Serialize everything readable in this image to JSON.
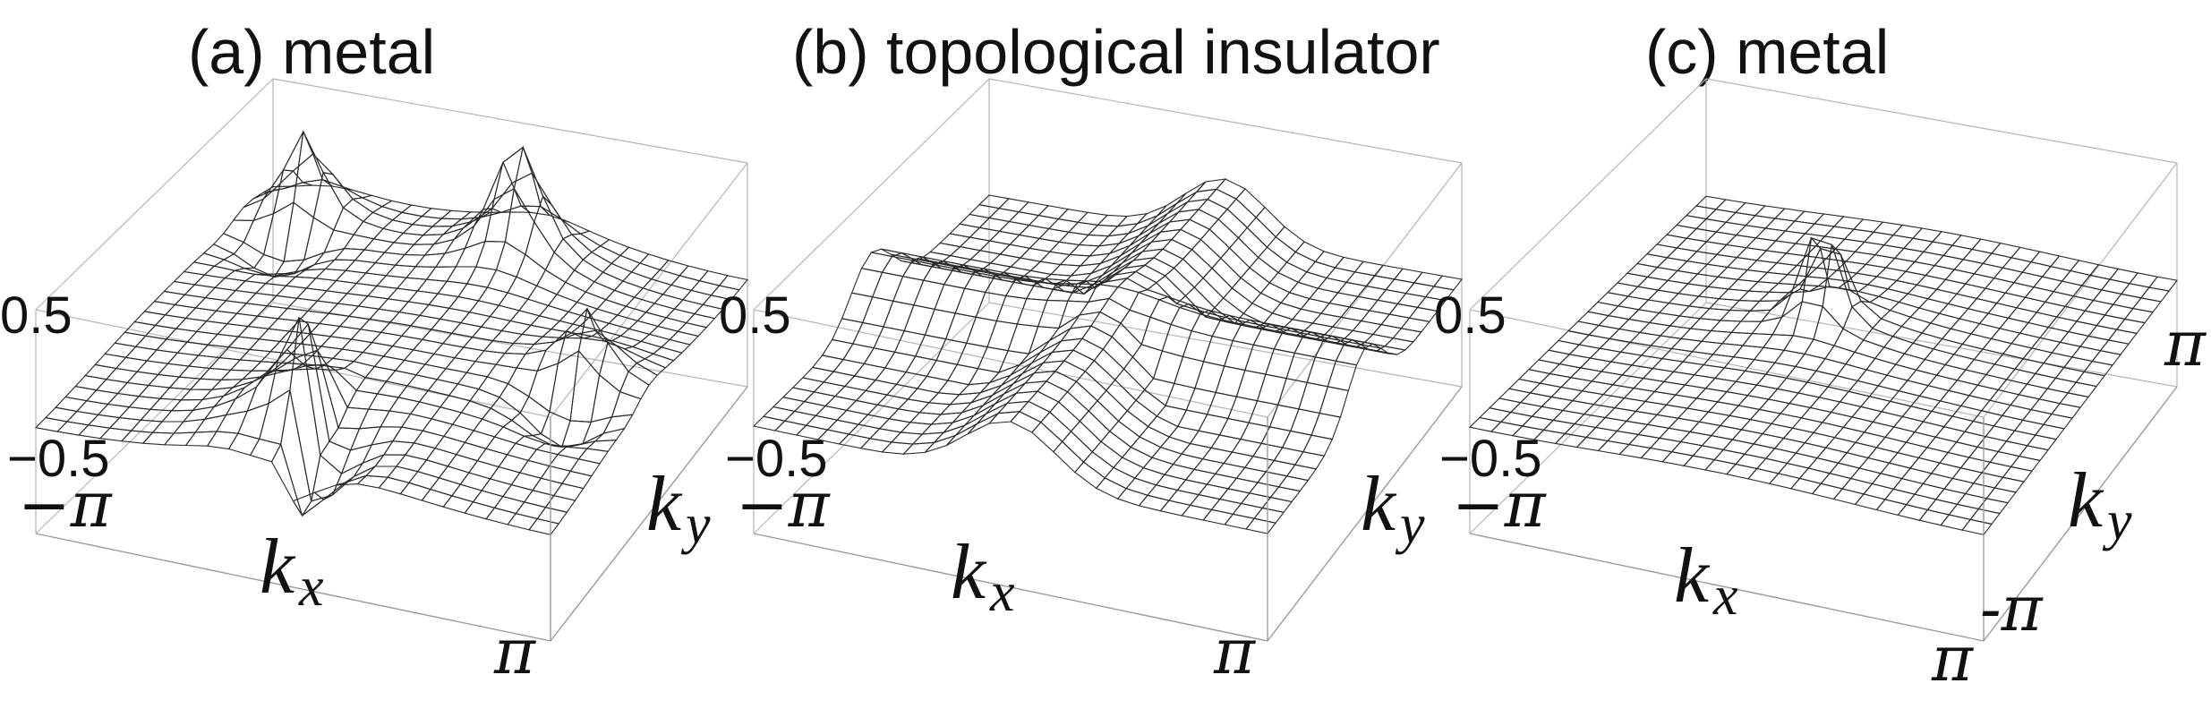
{
  "chart_data": [
    {
      "type": "surface",
      "title": "(a) metal",
      "xlabel": "k",
      "xlabel_sub": "x",
      "ylabel": "k",
      "ylabel_sub": "y",
      "x_ticks": [
        "−π",
        "π"
      ],
      "y_ticks": [],
      "z_ticks": [
        "0.5",
        "−0.5"
      ],
      "xlim": [
        -3.14159,
        3.14159
      ],
      "ylim": [
        -3.14159,
        3.14159
      ],
      "zlim": [
        -0.5,
        0.5
      ],
      "feature": "four sharp peaks/dips near the corners of the Brillouin zone (yellow-red tips, blue undersides)"
    },
    {
      "type": "surface",
      "title": "(b) topological insulator",
      "xlabel": "k",
      "xlabel_sub": "x",
      "ylabel": "k",
      "ylabel_sub": "y",
      "x_ticks": [
        "−π",
        "π"
      ],
      "y_ticks": [],
      "z_ticks": [
        "0.5",
        "−0.5"
      ],
      "xlim": [
        -3.14159,
        3.14159
      ],
      "ylim": [
        -3.14159,
        3.14159
      ],
      "zlim": [
        -0.5,
        0.5
      ],
      "feature": "cross-shaped red ridge along the k_x = 0 and k_y = 0 lines"
    },
    {
      "type": "surface",
      "title": "(c) metal",
      "xlabel": "k",
      "xlabel_sub": "x",
      "ylabel": "k",
      "ylabel_sub": "y",
      "x_ticks": [
        "−π",
        "π"
      ],
      "y_ticks": [
        "π",
        "-π"
      ],
      "z_ticks": [
        "0.5",
        "−0.5"
      ],
      "xlim": [
        -3.14159,
        3.14159
      ],
      "ylim": [
        -3.14159,
        3.14159
      ],
      "zlim": [
        -0.5,
        0.5
      ],
      "feature": "single narrow peak near the zone centre"
    }
  ],
  "colors": {
    "low": "#4d78c8",
    "mid": "#ffffff",
    "yellow": "#f3e04a",
    "high": "#d83a2a",
    "mesh": "#2a2a2a",
    "box": "#9a9a9a"
  }
}
